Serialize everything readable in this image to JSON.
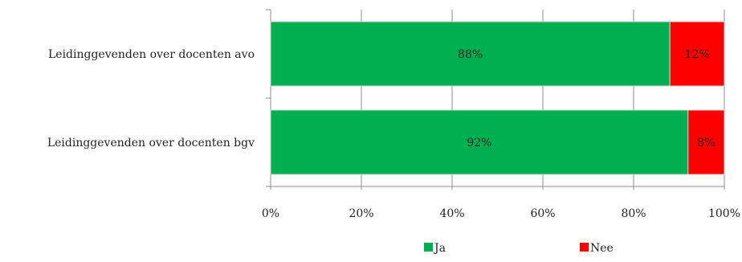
{
  "chart_data": {
    "type": "bar",
    "orientation": "horizontal",
    "stacked": true,
    "categories": [
      "Leidinggevenden over docenten avo",
      "Leidinggevenden over docenten bgv"
    ],
    "series": [
      {
        "name": "Ja",
        "values": [
          88,
          92
        ],
        "value_labels": [
          "88%",
          "92%"
        ],
        "color": "#00b050"
      },
      {
        "name": "Nee",
        "values": [
          12,
          8
        ],
        "value_labels": [
          "12%",
          "8%"
        ],
        "color": "#ff0000"
      }
    ],
    "xlim": [
      0,
      100
    ],
    "x_ticks": [
      0,
      20,
      40,
      60,
      80,
      100
    ],
    "x_tick_labels": [
      "0%",
      "20%",
      "40%",
      "60%",
      "80%",
      "100%"
    ],
    "grid": "vertical",
    "legend_position": "bottom",
    "title": "",
    "xlabel": "",
    "ylabel": ""
  }
}
